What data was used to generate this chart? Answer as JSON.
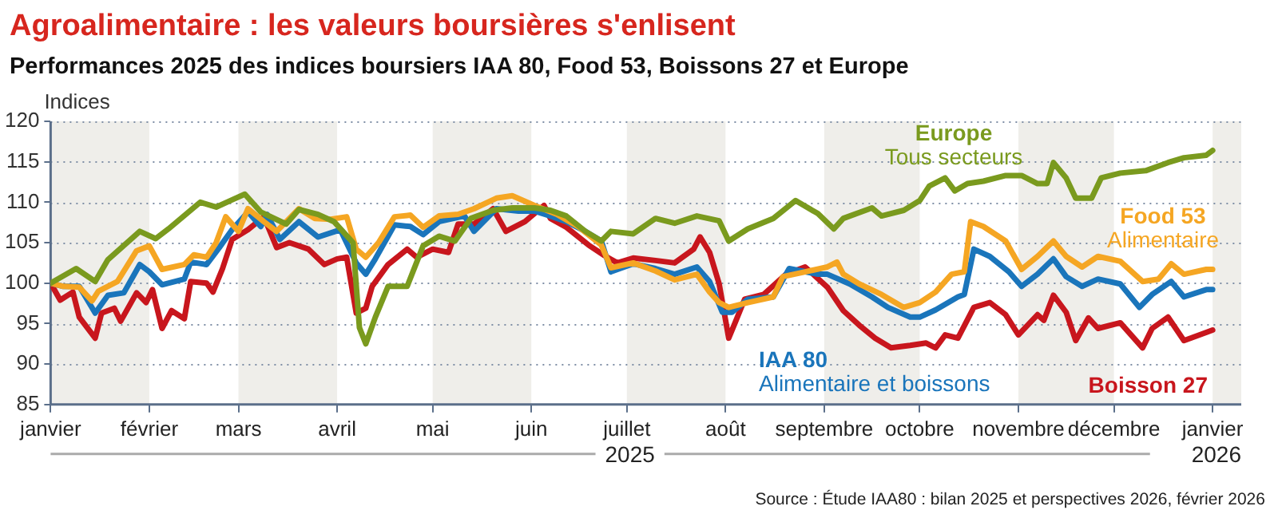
{
  "chart_data": {
    "type": "line",
    "title": "Agroalimentaire : les valeurs boursières s'enlisent",
    "subtitle": "Performances 2025 des indices boursiers IAA 80, Food 53, Boissons 27 et Europe",
    "ylabel": "Indices",
    "xlim": [
      "2025-01-01",
      "2026-01-10"
    ],
    "xticks": [
      {
        "value": "2025-01-01",
        "label": "janvier"
      },
      {
        "value": "2025-02-01",
        "label": "février"
      },
      {
        "value": "2025-03-01",
        "label": "mars"
      },
      {
        "value": "2025-04-01",
        "label": "avril"
      },
      {
        "value": "2025-05-01",
        "label": "mai"
      },
      {
        "value": "2025-06-01",
        "label": "juin"
      },
      {
        "value": "2025-07-01",
        "label": "juillet"
      },
      {
        "value": "2025-08-01",
        "label": "août"
      },
      {
        "value": "2025-09-01",
        "label": "septembre"
      },
      {
        "value": "2025-10-01",
        "label": "octobre"
      },
      {
        "value": "2025-11-01",
        "label": "novembre"
      },
      {
        "value": "2025-12-01",
        "label": "décembre"
      },
      {
        "value": "2026-01-01",
        "label": "janvier"
      }
    ],
    "ylim": [
      85,
      120
    ],
    "yticks": [
      85,
      90,
      95,
      100,
      105,
      110,
      115,
      120
    ],
    "grid": "y",
    "marker": "none",
    "line_style": "solid",
    "bands": [
      {
        "axis": "x",
        "from": "2025-01-01",
        "to": "2025-02-01",
        "color": "#efeeea"
      },
      {
        "axis": "x",
        "from": "2025-03-01",
        "to": "2025-04-01",
        "color": "#efeeea"
      },
      {
        "axis": "x",
        "from": "2025-05-01",
        "to": "2025-06-01",
        "color": "#efeeea"
      },
      {
        "axis": "x",
        "from": "2025-07-01",
        "to": "2025-08-01",
        "color": "#efeeea"
      },
      {
        "axis": "x",
        "from": "2025-09-01",
        "to": "2025-10-01",
        "color": "#efeeea"
      },
      {
        "axis": "x",
        "from": "2025-11-01",
        "to": "2025-12-01",
        "color": "#efeeea"
      },
      {
        "axis": "x",
        "from": "2026-01-01",
        "to": "2026-01-10",
        "color": "#efeeea"
      }
    ],
    "annotations": [
      "Tous secteurs",
      "Alimentaire",
      "Alimentaire et boissons",
      "2025",
      "2026",
      "Source : Étude IAA80 : bilan 2025 et perspectives 2026, février 2026"
    ],
    "series": [
      {
        "name": "Europe",
        "color": "#7a9a1e",
        "x": [
          "2025-01-01",
          "2025-01-09",
          "2025-01-15",
          "2025-01-19",
          "2025-01-29",
          "2025-02-03",
          "2025-02-07",
          "2025-02-17",
          "2025-02-22",
          "2025-02-27",
          "2025-03-03",
          "2025-03-08",
          "2025-03-16",
          "2025-03-20",
          "2025-03-26",
          "2025-03-31",
          "2025-04-06",
          "2025-04-08",
          "2025-04-10",
          "2025-04-13",
          "2025-04-17",
          "2025-04-23",
          "2025-04-28",
          "2025-05-03",
          "2025-05-08",
          "2025-05-13",
          "2025-05-20",
          "2025-05-26",
          "2025-06-02",
          "2025-06-07",
          "2025-06-12",
          "2025-06-18",
          "2025-06-23",
          "2025-06-26",
          "2025-07-03",
          "2025-07-10",
          "2025-07-16",
          "2025-07-23",
          "2025-07-30",
          "2025-08-02",
          "2025-08-08",
          "2025-08-16",
          "2025-08-23",
          "2025-08-30",
          "2025-09-04",
          "2025-09-07",
          "2025-09-16",
          "2025-09-19",
          "2025-09-26",
          "2025-10-01",
          "2025-10-04",
          "2025-10-09",
          "2025-10-12",
          "2025-10-16",
          "2025-10-21",
          "2025-10-28",
          "2025-11-02",
          "2025-11-07",
          "2025-11-10",
          "2025-11-12",
          "2025-11-16",
          "2025-11-19",
          "2025-11-24",
          "2025-11-27",
          "2025-12-03",
          "2025-12-11",
          "2025-12-18",
          "2025-12-23",
          "2025-12-30",
          "2026-01-01"
        ],
        "values": [
          100,
          101.8,
          100.2,
          102.9,
          106.4,
          105.5,
          106.7,
          110,
          109.4,
          110.3,
          111,
          108.8,
          107.3,
          109.1,
          108.5,
          107.6,
          105,
          94.5,
          92.5,
          95.8,
          99.6,
          99.6,
          104.6,
          105.8,
          105.2,
          108,
          109,
          109.3,
          109.3,
          109,
          108.3,
          106.4,
          105.2,
          106.4,
          106.1,
          108,
          107.4,
          108.3,
          107.7,
          105.2,
          106.7,
          108,
          110.2,
          108.6,
          106.7,
          108,
          109.3,
          108.3,
          109,
          110.2,
          112,
          113,
          111.4,
          112.3,
          112.6,
          113.3,
          113.3,
          112.3,
          112.3,
          114.9,
          113,
          110.5,
          110.5,
          113,
          113.6,
          113.9,
          114.9,
          115.5,
          115.8,
          116.4
        ]
      },
      {
        "name": "Food 53",
        "color": "#f5a623",
        "x": [
          "2025-01-01",
          "2025-01-05",
          "2025-01-10",
          "2025-01-14",
          "2025-01-16",
          "2025-01-22",
          "2025-01-28",
          "2025-02-01",
          "2025-02-05",
          "2025-02-12",
          "2025-02-15",
          "2025-02-19",
          "2025-02-22",
          "2025-02-25",
          "2025-03-01",
          "2025-03-04",
          "2025-03-09",
          "2025-03-13",
          "2025-03-20",
          "2025-03-25",
          "2025-03-30",
          "2025-04-04",
          "2025-04-07",
          "2025-04-10",
          "2025-04-14",
          "2025-04-19",
          "2025-04-24",
          "2025-04-28",
          "2025-05-03",
          "2025-05-09",
          "2025-05-14",
          "2025-05-21",
          "2025-05-26",
          "2025-06-02",
          "2025-06-09",
          "2025-06-16",
          "2025-06-23",
          "2025-06-26",
          "2025-07-03",
          "2025-07-10",
          "2025-07-16",
          "2025-07-23",
          "2025-07-27",
          "2025-07-30",
          "2025-08-02",
          "2025-08-08",
          "2025-08-16",
          "2025-08-19",
          "2025-08-26",
          "2025-09-02",
          "2025-09-05",
          "2025-09-07",
          "2025-09-12",
          "2025-09-19",
          "2025-09-26",
          "2025-10-01",
          "2025-10-06",
          "2025-10-11",
          "2025-10-15",
          "2025-10-17",
          "2025-10-21",
          "2025-10-28",
          "2025-11-02",
          "2025-11-07",
          "2025-11-12",
          "2025-11-16",
          "2025-11-21",
          "2025-11-26",
          "2025-12-03",
          "2025-12-10",
          "2025-12-15",
          "2025-12-19",
          "2025-12-23",
          "2025-12-30",
          "2026-01-01"
        ],
        "values": [
          100,
          99.6,
          99.5,
          97.8,
          99,
          100.2,
          104,
          104.6,
          101.7,
          102.3,
          103.5,
          103.2,
          105,
          108.2,
          106.4,
          109.2,
          107.6,
          106.4,
          109.2,
          108,
          107.9,
          108.2,
          104.2,
          103.2,
          105,
          108.2,
          108.4,
          106.9,
          108.3,
          108.5,
          109.2,
          110.5,
          110.8,
          109.6,
          108.5,
          106.9,
          104.7,
          101.9,
          102.5,
          101.5,
          100.4,
          101.1,
          98.9,
          97.6,
          97,
          97.6,
          98.3,
          100.8,
          101.4,
          102,
          102.6,
          101.1,
          99.9,
          98.6,
          97,
          97.6,
          98.9,
          101.1,
          101.4,
          107.6,
          107,
          105.2,
          101.7,
          103.3,
          105.2,
          103.3,
          102,
          103.3,
          102.7,
          100.2,
          100.5,
          102.4,
          101.1,
          101.7,
          101.7
        ]
      },
      {
        "name": "IAA 80",
        "color": "#1a75bb",
        "x": [
          "2025-01-01",
          "2025-01-05",
          "2025-01-10",
          "2025-01-15",
          "2025-01-19",
          "2025-01-24",
          "2025-01-29",
          "2025-02-01",
          "2025-02-05",
          "2025-02-12",
          "2025-02-14",
          "2025-02-19",
          "2025-02-23",
          "2025-02-27",
          "2025-03-04",
          "2025-03-08",
          "2025-03-10",
          "2025-03-14",
          "2025-03-20",
          "2025-03-26",
          "2025-04-02",
          "2025-04-07",
          "2025-04-10",
          "2025-04-13",
          "2025-04-19",
          "2025-04-24",
          "2025-04-28",
          "2025-05-03",
          "2025-05-11",
          "2025-05-14",
          "2025-05-21",
          "2025-05-28",
          "2025-06-02",
          "2025-06-07",
          "2025-06-12",
          "2025-06-18",
          "2025-06-23",
          "2025-06-26",
          "2025-07-03",
          "2025-07-10",
          "2025-07-16",
          "2025-07-23",
          "2025-07-27",
          "2025-07-31",
          "2025-08-03",
          "2025-08-08",
          "2025-08-16",
          "2025-08-21",
          "2025-08-30",
          "2025-09-02",
          "2025-09-09",
          "2025-09-16",
          "2025-09-21",
          "2025-09-28",
          "2025-10-01",
          "2025-10-06",
          "2025-10-13",
          "2025-10-15",
          "2025-10-18",
          "2025-10-23",
          "2025-10-29",
          "2025-11-02",
          "2025-11-07",
          "2025-11-12",
          "2025-11-16",
          "2025-11-21",
          "2025-11-26",
          "2025-12-03",
          "2025-12-09",
          "2025-12-13",
          "2025-12-19",
          "2025-12-23",
          "2025-12-30",
          "2026-01-01"
        ],
        "values": [
          100,
          99.6,
          99.6,
          96.3,
          98.5,
          98.8,
          102.3,
          101.4,
          99.8,
          100.5,
          102.6,
          102.3,
          104.4,
          106.6,
          108.8,
          107,
          108.5,
          105.4,
          107.6,
          105.7,
          106.6,
          102.5,
          101.1,
          103,
          107.2,
          107,
          106,
          107.6,
          108.3,
          106.4,
          109.2,
          108.9,
          108.9,
          108.3,
          107.6,
          106.4,
          105.2,
          101.4,
          102.4,
          101.8,
          101.1,
          102,
          100.2,
          96.4,
          96.4,
          98,
          98.3,
          101.8,
          101.1,
          101.1,
          99.9,
          98.3,
          97,
          95.8,
          95.8,
          96.7,
          98.3,
          98.6,
          104.2,
          103.3,
          101.4,
          99.6,
          101.1,
          103,
          100.8,
          99.6,
          100.5,
          99.9,
          97,
          98.6,
          100.2,
          98.3,
          99.2,
          99.2
        ]
      },
      {
        "name": "Boisson 27",
        "color": "#c8161d",
        "x": [
          "2025-01-01",
          "2025-01-04",
          "2025-01-08",
          "2025-01-10",
          "2025-01-15",
          "2025-01-17",
          "2025-01-21",
          "2025-01-23",
          "2025-01-28",
          "2025-01-31",
          "2025-02-02",
          "2025-02-05",
          "2025-02-08",
          "2025-02-12",
          "2025-02-14",
          "2025-02-19",
          "2025-02-21",
          "2025-02-24",
          "2025-02-27",
          "2025-03-04",
          "2025-03-09",
          "2025-03-13",
          "2025-03-17",
          "2025-03-23",
          "2025-03-28",
          "2025-04-01",
          "2025-04-04",
          "2025-04-07",
          "2025-04-10",
          "2025-04-12",
          "2025-04-17",
          "2025-04-23",
          "2025-04-26",
          "2025-05-01",
          "2025-05-06",
          "2025-05-09",
          "2025-05-14",
          "2025-05-20",
          "2025-05-24",
          "2025-05-30",
          "2025-06-05",
          "2025-06-07",
          "2025-06-12",
          "2025-06-19",
          "2025-06-24",
          "2025-06-28",
          "2025-07-03",
          "2025-07-10",
          "2025-07-16",
          "2025-07-22",
          "2025-07-24",
          "2025-07-27",
          "2025-07-30",
          "2025-08-02",
          "2025-08-04",
          "2025-08-07",
          "2025-08-13",
          "2025-08-20",
          "2025-08-26",
          "2025-09-02",
          "2025-09-07",
          "2025-09-12",
          "2025-09-17",
          "2025-09-22",
          "2025-09-28",
          "2025-10-03",
          "2025-10-06",
          "2025-10-09",
          "2025-10-13",
          "2025-10-18",
          "2025-10-23",
          "2025-10-28",
          "2025-11-01",
          "2025-11-07",
          "2025-11-09",
          "2025-11-12",
          "2025-11-16",
          "2025-11-19",
          "2025-11-23",
          "2025-11-26",
          "2025-12-03",
          "2025-12-10",
          "2025-12-13",
          "2025-12-18",
          "2025-12-23",
          "2025-12-30",
          "2026-01-01"
        ],
        "values": [
          100,
          97.9,
          98.9,
          95.8,
          93.2,
          96.3,
          96.9,
          95.3,
          98.8,
          97.6,
          99.2,
          94.4,
          96.6,
          95.6,
          100.2,
          100,
          98.9,
          101.8,
          105.4,
          106.6,
          108.2,
          104.4,
          105,
          104.2,
          102.3,
          103,
          103.2,
          96.3,
          96.9,
          99.6,
          102.3,
          104.2,
          103.2,
          104.2,
          103.8,
          107.3,
          107.3,
          109.2,
          106.4,
          107.6,
          109.6,
          108,
          106.9,
          104.7,
          103.4,
          102.5,
          103.1,
          102.8,
          102.5,
          104.2,
          105.7,
          103.8,
          99.9,
          93.2,
          95.1,
          98,
          98.6,
          101.1,
          102,
          99.5,
          96.6,
          94.8,
          93.2,
          92,
          92.3,
          92.6,
          92,
          93.6,
          93.2,
          97,
          97.6,
          96.1,
          93.6,
          96.1,
          95.4,
          98.5,
          96.4,
          92.9,
          95.7,
          94.4,
          95.1,
          92,
          94.4,
          95.8,
          92.9,
          93.9,
          94.2
        ]
      }
    ]
  }
}
